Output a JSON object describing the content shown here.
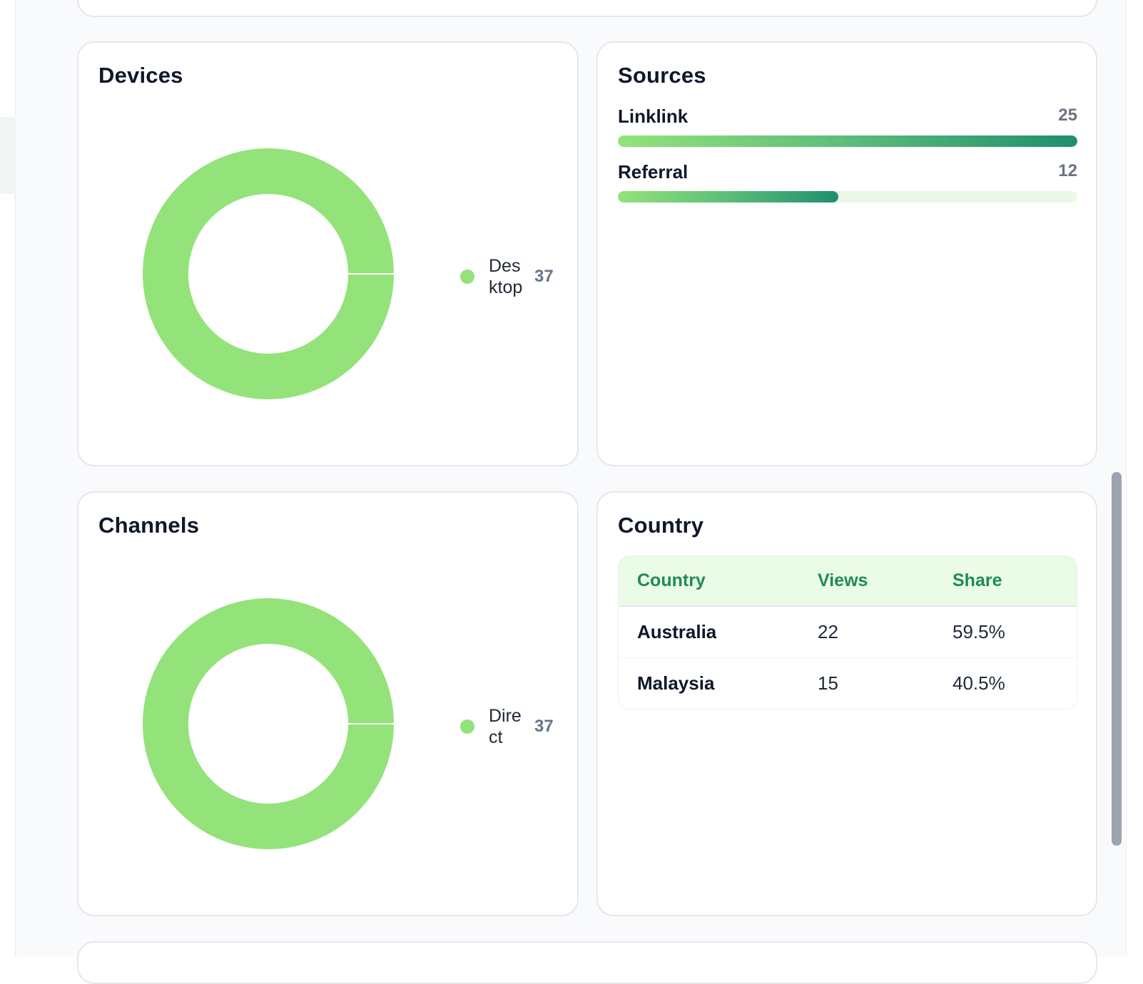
{
  "devices": {
    "title": "Devices",
    "legend": [
      {
        "label": "Desktop",
        "value": "37",
        "color": "#93e37a"
      }
    ],
    "chart_data": {
      "type": "pie",
      "categories": [
        "Desktop"
      ],
      "values": [
        37
      ],
      "colors": [
        "#93e37a"
      ]
    }
  },
  "sources": {
    "title": "Sources",
    "items": [
      {
        "label": "Linklink",
        "value": "25",
        "fraction": 1.0
      },
      {
        "label": "Referral",
        "value": "12",
        "fraction": 0.48
      }
    ],
    "bar_gradient": [
      "#93e37a",
      "#1f8f6b"
    ],
    "track_color": "#eaf8e5"
  },
  "channels": {
    "title": "Channels",
    "legend": [
      {
        "label": "Direct",
        "value": "37",
        "color": "#93e37a"
      }
    ],
    "chart_data": {
      "type": "pie",
      "categories": [
        "Direct"
      ],
      "values": [
        37
      ],
      "colors": [
        "#93e37a"
      ]
    }
  },
  "country": {
    "title": "Country",
    "columns": [
      "Country",
      "Views",
      "Share"
    ],
    "rows": [
      {
        "country": "Australia",
        "views": "22",
        "share": "59.5%"
      },
      {
        "country": "Malaysia",
        "views": "15",
        "share": "40.5%"
      }
    ],
    "header_color": "#1f8a5a",
    "header_bg": "#eafbe6"
  }
}
